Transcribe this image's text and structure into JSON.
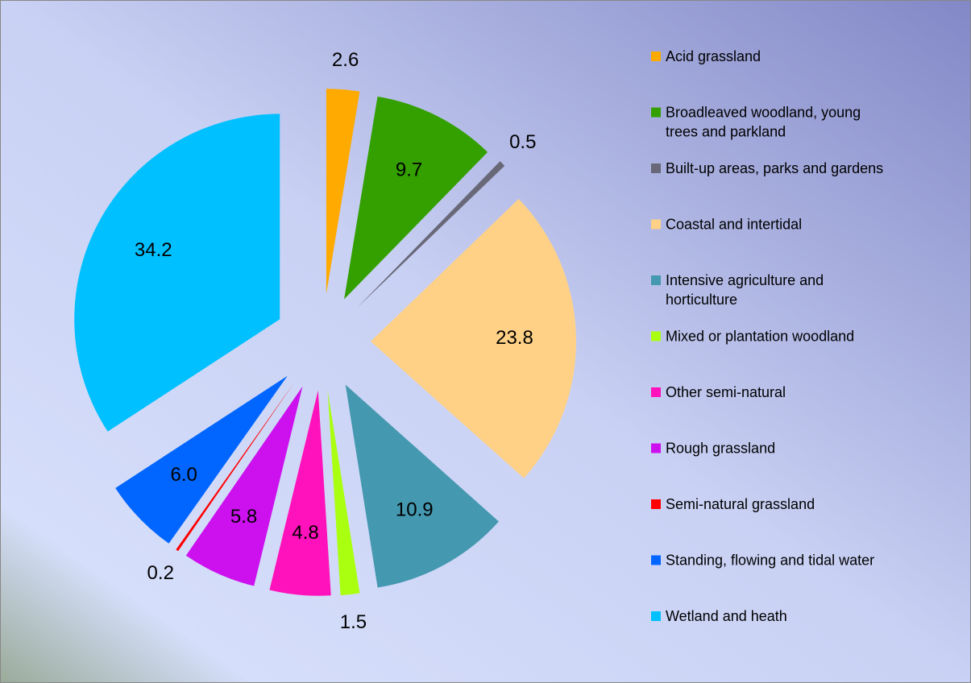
{
  "chart_data": {
    "type": "pie",
    "categories": [
      "Acid grassland",
      "Broadleaved woodland, young trees and parkland",
      "Built-up areas, parks and gardens",
      "Coastal and intertidal",
      "Intensive agriculture and horticulture",
      "Mixed or plantation woodland",
      "Other semi-natural",
      "Rough grassland",
      "Semi-natural grassland",
      "Standing, flowing and tidal water",
      "Wetland and heath"
    ],
    "values": [
      2.6,
      9.7,
      0.5,
      23.8,
      10.9,
      1.5,
      4.8,
      5.8,
      0.2,
      6.0,
      34.2
    ],
    "value_labels": [
      "2.6",
      "9.7",
      "0.5",
      "23.8",
      "10.9",
      "1.5",
      "4.8",
      "5.8",
      "0.2",
      "6.0",
      "34.2"
    ],
    "colors": [
      "#ffaa00",
      "#33a000",
      "#686878",
      "#ffd187",
      "#4498b0",
      "#aaff11",
      "#ff11bb",
      "#cc11ee",
      "#ff0000",
      "#0066ff",
      "#00c0ff"
    ],
    "legend": "right"
  }
}
